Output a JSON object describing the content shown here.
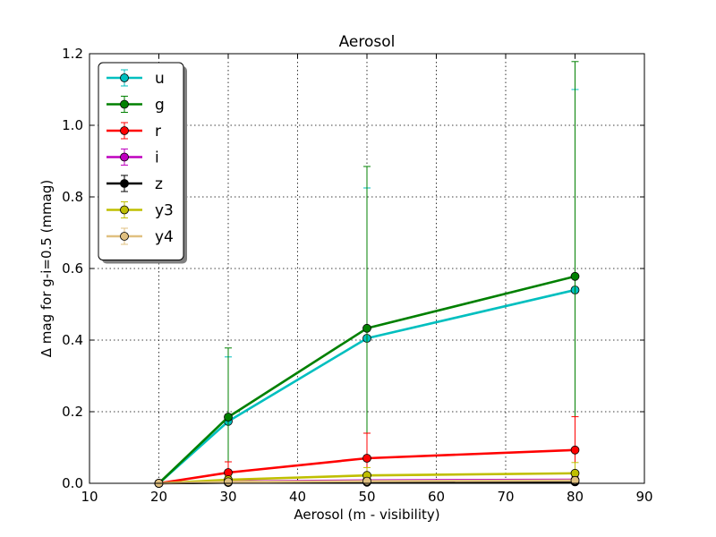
{
  "chart_data": {
    "type": "line",
    "title": "Aerosol",
    "xlabel": "Aerosol (m - visibility)",
    "ylabel": "Δ mag for g-i=0.5 (mmag)",
    "xlim": [
      10,
      90
    ],
    "ylim": [
      0,
      1.2
    ],
    "xticks": [
      10,
      20,
      30,
      40,
      50,
      60,
      70,
      80,
      90
    ],
    "yticks": [
      0.0,
      0.2,
      0.4,
      0.6,
      0.8,
      1.0,
      1.2
    ],
    "xtick_labels": [
      "10",
      "20",
      "30",
      "40",
      "50",
      "60",
      "70",
      "80",
      "90"
    ],
    "ytick_labels": [
      "0.0",
      "0.2",
      "0.4",
      "0.6",
      "0.8",
      "1.0",
      "1.2"
    ],
    "grid": true,
    "legend_position": "top-left",
    "x": [
      20,
      30,
      50,
      80
    ],
    "series": [
      {
        "name": "u",
        "color": "#00bfbf",
        "values": [
          0.0,
          0.173,
          0.405,
          0.54
        ],
        "errors": [
          0.0,
          0.18,
          0.42,
          0.56
        ]
      },
      {
        "name": "g",
        "color": "#008000",
        "values": [
          0.0,
          0.185,
          0.433,
          0.578
        ],
        "errors": [
          0.0,
          0.193,
          0.452,
          0.6
        ]
      },
      {
        "name": "r",
        "color": "#ff0000",
        "values": [
          0.0,
          0.03,
          0.07,
          0.093
        ],
        "errors": [
          0.0,
          0.03,
          0.07,
          0.093
        ]
      },
      {
        "name": "i",
        "color": "#bf00bf",
        "values": [
          0.0,
          0.005,
          0.008,
          0.01
        ],
        "errors": [
          0.0,
          0.005,
          0.008,
          0.01
        ]
      },
      {
        "name": "z",
        "color": "#000000",
        "values": [
          0.0,
          0.002,
          0.003,
          0.004
        ],
        "errors": [
          0.0,
          0.002,
          0.003,
          0.004
        ]
      },
      {
        "name": "y3",
        "color": "#bfbf00",
        "values": [
          0.0,
          0.01,
          0.022,
          0.028
        ],
        "errors": [
          0.0,
          0.01,
          0.022,
          0.03
        ]
      },
      {
        "name": "y4",
        "color": "#e0c080",
        "values": [
          0.0,
          0.004,
          0.006,
          0.008
        ],
        "errors": [
          0.0,
          0.004,
          0.006,
          0.008
        ]
      }
    ]
  }
}
